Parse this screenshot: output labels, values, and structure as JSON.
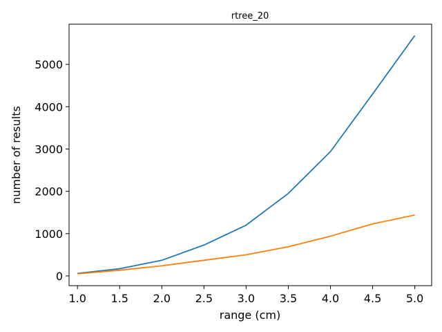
{
  "chart_data": {
    "type": "line",
    "title": "rtree_20",
    "xlabel": "range (cm)",
    "ylabel": "number of results",
    "x": [
      1.0,
      1.5,
      2.0,
      2.5,
      3.0,
      3.5,
      4.0,
      4.5,
      5.0
    ],
    "series": [
      {
        "color": "#1f77b4",
        "values": [
          60,
          170,
          370,
          730,
          1200,
          1950,
          2940,
          4300,
          5680
        ]
      },
      {
        "color": "#ff7f0e",
        "values": [
          50,
          135,
          240,
          370,
          500,
          690,
          940,
          1230,
          1440
        ]
      }
    ],
    "xlim": [
      0.9,
      5.2
    ],
    "ylim": [
      -230,
      5950
    ],
    "xticks": [
      "1.0",
      "1.5",
      "2.0",
      "2.5",
      "3.0",
      "3.5",
      "4.0",
      "4.5",
      "5.0"
    ],
    "yticks": [
      "0",
      "1000",
      "2000",
      "3000",
      "4000",
      "5000"
    ],
    "grid": false,
    "legend": "none"
  }
}
